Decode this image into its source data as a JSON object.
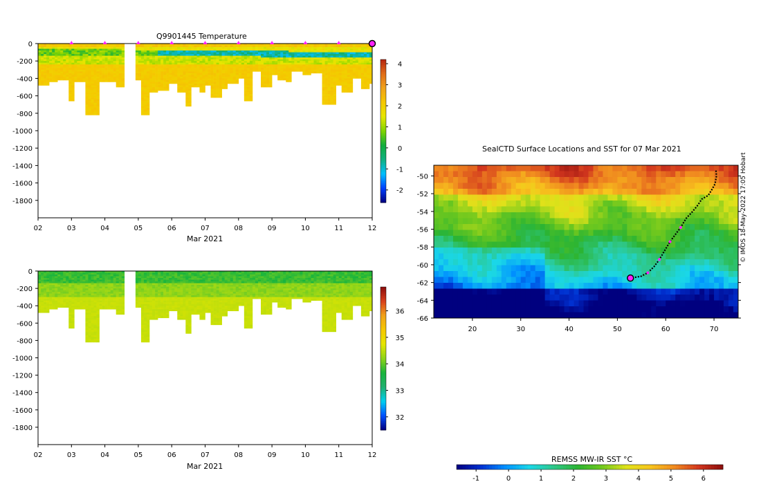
{
  "colors": {
    "sst_cmap": [
      "#00007f",
      "#0030d0",
      "#0090ff",
      "#1ad7e8",
      "#2ec88a",
      "#2bb433",
      "#6fc81e",
      "#dfe21a",
      "#f7c51d",
      "#f08a1f",
      "#d2361e",
      "#8b0d0d"
    ],
    "temp_cmap": [
      "#00007f",
      "#0040ff",
      "#00c0ff",
      "#10b080",
      "#11ad3c",
      "#80d400",
      "#e6e600",
      "#f5c800",
      "#f0a21a",
      "#e06c18",
      "#b52510"
    ],
    "sal_cmap": [
      "#00007f",
      "#0050ff",
      "#00d0f0",
      "#20b070",
      "#19b43c",
      "#8ed418",
      "#e6e600",
      "#f5c800",
      "#f0a21a",
      "#d8401c",
      "#8b0d0d"
    ],
    "profile_marker": "#ff22ff",
    "track": "#000000"
  },
  "chart_data": [
    {
      "type": "heatmap",
      "id": "temperature",
      "title": "Q9901445  Temperature",
      "xlabel": "Mar 2021",
      "x_ticks": [
        "02",
        "03",
        "04",
        "05",
        "06",
        "07",
        "08",
        "09",
        "10",
        "11",
        "12"
      ],
      "x_range": [
        2,
        12
      ],
      "ylim": [
        -2000,
        0
      ],
      "y_ticks": [
        0,
        -200,
        -400,
        -600,
        -800,
        -1000,
        -1200,
        -1400,
        -1600,
        -1800
      ],
      "colorbar": {
        "min": -2.6,
        "max": 4.2,
        "ticks": [
          -2,
          -1,
          0,
          1,
          2,
          3,
          4
        ]
      },
      "profile_days": [
        3,
        4,
        5,
        6,
        7,
        8,
        9,
        10,
        11,
        12
      ],
      "gap_days": [
        4.6,
        4.9
      ],
      "max_depth_by_day": [
        [
          2.0,
          -480
        ],
        [
          2.3,
          -440
        ],
        [
          2.6,
          -420
        ],
        [
          2.9,
          -660
        ],
        [
          3.1,
          -440
        ],
        [
          3.4,
          -420
        ],
        [
          3.45,
          -820
        ],
        [
          3.8,
          -440
        ],
        [
          4.3,
          -500
        ],
        [
          4.9,
          -420
        ],
        [
          5.1,
          -820
        ],
        [
          5.3,
          -560
        ],
        [
          5.6,
          -540
        ],
        [
          5.9,
          -460
        ],
        [
          6.2,
          -560
        ],
        [
          6.4,
          -720
        ],
        [
          6.6,
          -500
        ],
        [
          6.8,
          -560
        ],
        [
          7.0,
          -480
        ],
        [
          7.2,
          -620
        ],
        [
          7.5,
          -520
        ],
        [
          7.7,
          -460
        ],
        [
          8.0,
          -400
        ],
        [
          8.2,
          -660
        ],
        [
          8.4,
          -320
        ],
        [
          8.7,
          -500
        ],
        [
          9.0,
          -360
        ],
        [
          9.2,
          -420
        ],
        [
          9.4,
          -440
        ],
        [
          9.6,
          -320
        ],
        [
          9.9,
          -360
        ],
        [
          10.2,
          -340
        ],
        [
          10.5,
          -700
        ],
        [
          10.9,
          -480
        ],
        [
          11.1,
          -560
        ],
        [
          11.4,
          -400
        ],
        [
          11.7,
          -520
        ],
        [
          11.9,
          -460
        ],
        [
          12.0,
          -500
        ]
      ],
      "layers": [
        {
          "top": 0,
          "bottom": -60,
          "value": 2.2
        },
        {
          "top": -60,
          "bottom": -130,
          "value": 0.4
        },
        {
          "top": -130,
          "bottom": -240,
          "value": 1.3
        },
        {
          "top": -240,
          "bottom": -2000,
          "value": 2.1
        }
      ]
    },
    {
      "type": "heatmap",
      "id": "salinity",
      "title": "",
      "xlabel": "Mar 2021",
      "x_ticks": [
        "02",
        "03",
        "04",
        "05",
        "06",
        "07",
        "08",
        "09",
        "10",
        "11",
        "12"
      ],
      "x_range": [
        2,
        12
      ],
      "ylim": [
        -2000,
        0
      ],
      "y_ticks": [
        0,
        -200,
        -400,
        -600,
        -800,
        -1000,
        -1200,
        -1400,
        -1600,
        -1800
      ],
      "colorbar": {
        "min": 31.5,
        "max": 36.9,
        "ticks": [
          32,
          33,
          34,
          35,
          36
        ]
      },
      "gap_days": [
        4.6,
        4.9
      ],
      "layers": [
        {
          "top": 0,
          "bottom": -150,
          "value": 33.9
        },
        {
          "top": -150,
          "bottom": -300,
          "value": 34.2
        },
        {
          "top": -300,
          "bottom": -2000,
          "value": 34.6
        }
      ]
    },
    {
      "type": "heatmap",
      "id": "sst_map",
      "title": "SealCTD Surface Locations and SST for 07 Mar 2021",
      "x_ticks": [
        20,
        30,
        40,
        50,
        60,
        70
      ],
      "x_range": [
        12,
        75
      ],
      "y_ticks": [
        -50,
        -52,
        -54,
        -56,
        -58,
        -60,
        -62,
        -64,
        -66
      ],
      "y_range": [
        -66,
        -48.8
      ],
      "colorbar": {
        "label": "REMSS MW-IR SST °C",
        "min": -1.6,
        "max": 6.6,
        "ticks": [
          -1,
          0,
          1,
          2,
          3,
          4,
          5,
          6
        ]
      },
      "track": [
        [
          70.4,
          -49.4
        ],
        [
          70.5,
          -50.0
        ],
        [
          70.2,
          -50.9
        ],
        [
          69.6,
          -51.5
        ],
        [
          68.8,
          -52.2
        ],
        [
          67.5,
          -52.6
        ],
        [
          66.5,
          -53.4
        ],
        [
          65.4,
          -54.1
        ],
        [
          64.2,
          -54.8
        ],
        [
          63.1,
          -55.8
        ],
        [
          62.0,
          -56.6
        ],
        [
          60.9,
          -57.4
        ],
        [
          59.8,
          -58.4
        ],
        [
          58.7,
          -59.4
        ],
        [
          57.6,
          -60.2
        ],
        [
          56.3,
          -60.9
        ],
        [
          54.9,
          -61.3
        ],
        [
          52.7,
          -61.5
        ]
      ],
      "track_profiles": [
        [
          63.1,
          -55.8
        ],
        [
          60.9,
          -57.4
        ],
        [
          58.7,
          -59.4
        ],
        [
          56.3,
          -60.9
        ]
      ],
      "current_location": [
        52.7,
        -61.5
      ]
    }
  ],
  "credit": "© IMOS 18-May-2022 17:05 Hobart"
}
